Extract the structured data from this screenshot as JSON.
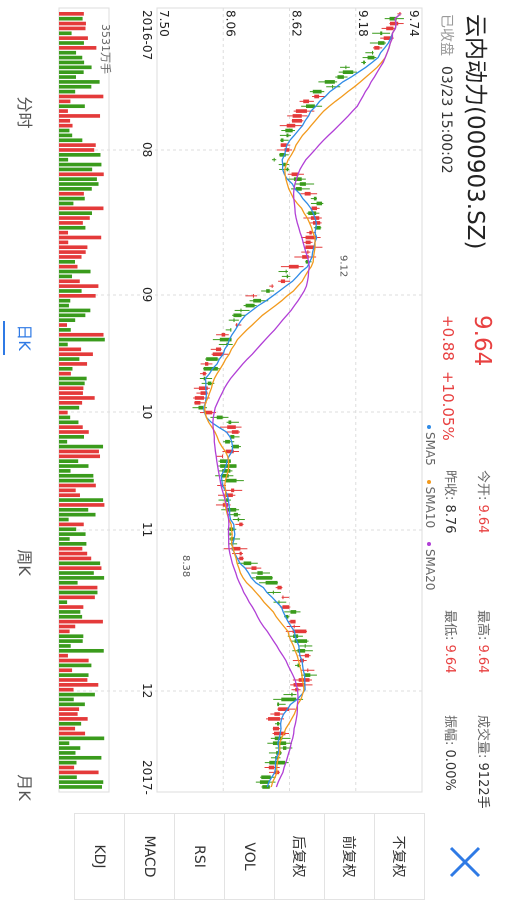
{
  "header": {
    "stock_name": "云内动力(000903.SZ)",
    "market_status": "已收盘",
    "datetime": "03/23 15:00:02",
    "price": "9.64",
    "change": "+0.88",
    "change_pct": "+10.05%",
    "open_label": "今开:",
    "open_value": "9.64",
    "prev_close_label": "昨收:",
    "prev_close_value": "8.76",
    "high_label": "最高:",
    "high_value": "9.64",
    "low_label": "最低:",
    "low_value": "9.64",
    "volume_label": "成交量:",
    "volume_value": "9122手",
    "amplitude_label": "振幅:",
    "amplitude_value": "0.00%"
  },
  "legend": [
    {
      "name": "SMA5",
      "color": "#2f8be6"
    },
    {
      "name": "SMA10",
      "color": "#f29a1d"
    },
    {
      "name": "SMA20",
      "color": "#b13fd6"
    }
  ],
  "indicators": [
    {
      "label": "不复权",
      "active": true
    },
    {
      "label": "前复权",
      "active": false
    },
    {
      "label": "后复权",
      "active": false
    },
    {
      "label": "VOL",
      "active": true
    },
    {
      "label": "RSI",
      "active": false
    },
    {
      "label": "MACD",
      "active": false
    },
    {
      "label": "KDJ",
      "active": false
    }
  ],
  "tabs": [
    {
      "label": "分时",
      "active": false
    },
    {
      "label": "日K",
      "active": true
    },
    {
      "label": "周K",
      "active": false
    },
    {
      "label": "月K",
      "active": false
    }
  ],
  "colors": {
    "up": "#e43a3a",
    "down": "#3a9b1c",
    "accent": "#2f7ae5"
  },
  "chart_data": {
    "type": "candlestick",
    "y_ticks": [
      "9.74",
      "9.18",
      "8.62",
      "8.06",
      "7.50"
    ],
    "ylim": [
      7.5,
      9.74
    ],
    "x_labels": [
      "2016-07",
      "08",
      "09",
      "10",
      "11",
      "12",
      "2017-"
    ],
    "annotations": [
      "9.12",
      "8.38"
    ],
    "volume_label": "3531万手"
  }
}
